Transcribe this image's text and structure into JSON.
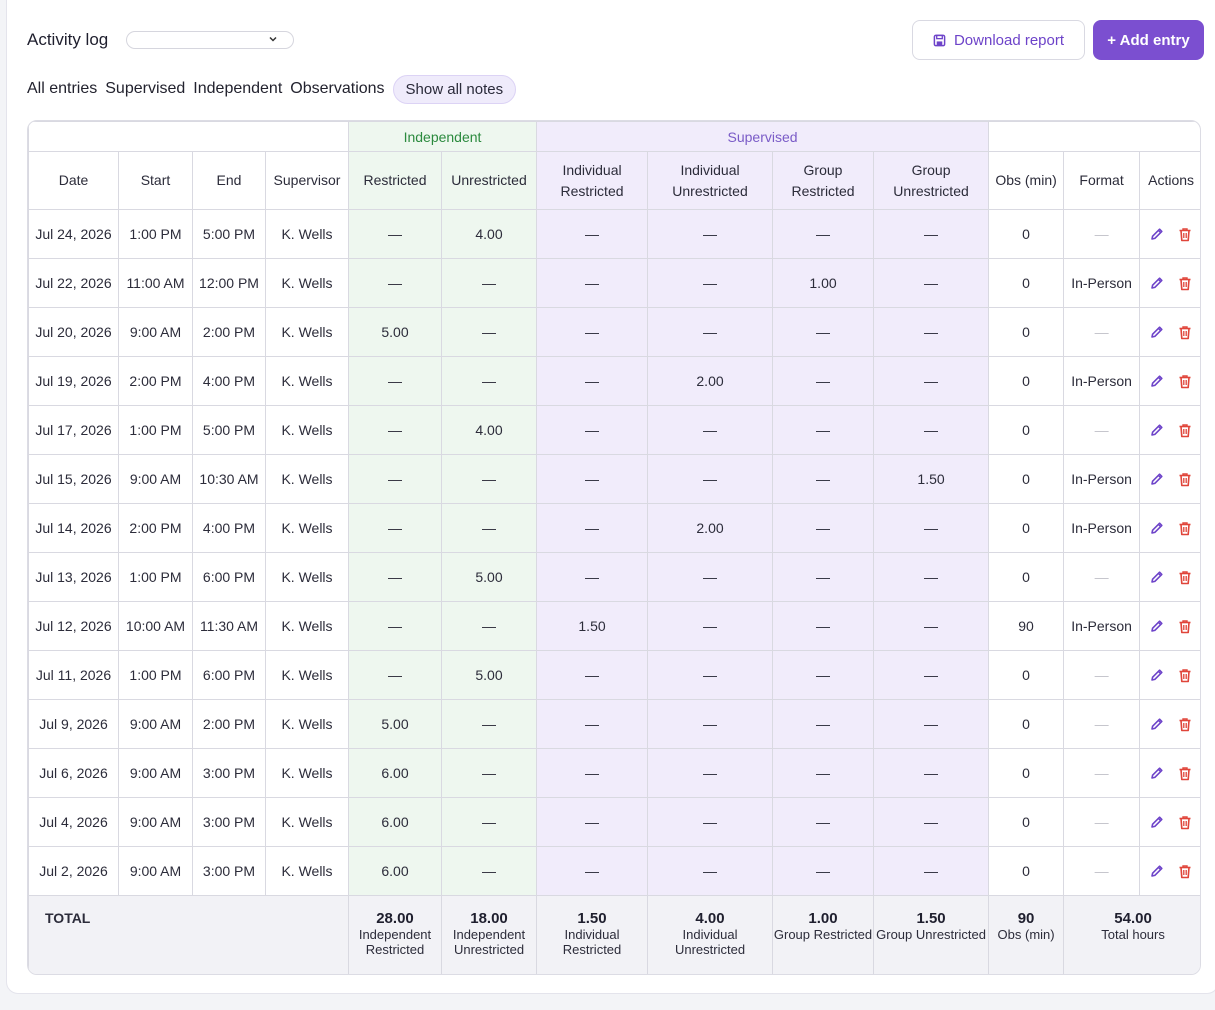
{
  "header": {
    "title": "Activity log",
    "dropdown_value": "",
    "download_label": "Download report",
    "add_label": "+ Add entry"
  },
  "filters": [
    "All entries",
    "Supervised",
    "Independent",
    "Observations"
  ],
  "show_notes_label": "Show all notes",
  "table": {
    "groups": {
      "independent": "Independent",
      "supervised": "Supervised"
    },
    "columns": [
      "Date",
      "Start",
      "End",
      "Supervisor",
      "Restricted",
      "Unrestricted",
      "Individual Restricted",
      "Individual Unrestricted",
      "Group Restricted",
      "Group Unrestricted",
      "Obs (min)",
      "Format",
      "Actions"
    ],
    "rows": [
      [
        "Jul 24, 2026",
        "1:00 PM",
        "5:00 PM",
        "K. Wells",
        "—",
        "4.00",
        "—",
        "—",
        "—",
        "—",
        "0",
        "—"
      ],
      [
        "Jul 22, 2026",
        "11:00 AM",
        "12:00 PM",
        "K. Wells",
        "—",
        "—",
        "—",
        "—",
        "1.00",
        "—",
        "0",
        "In-Person"
      ],
      [
        "Jul 20, 2026",
        "9:00 AM",
        "2:00 PM",
        "K. Wells",
        "5.00",
        "—",
        "—",
        "—",
        "—",
        "—",
        "0",
        "—"
      ],
      [
        "Jul 19, 2026",
        "2:00 PM",
        "4:00 PM",
        "K. Wells",
        "—",
        "—",
        "—",
        "2.00",
        "—",
        "—",
        "0",
        "In-Person"
      ],
      [
        "Jul 17, 2026",
        "1:00 PM",
        "5:00 PM",
        "K. Wells",
        "—",
        "4.00",
        "—",
        "—",
        "—",
        "—",
        "0",
        "—"
      ],
      [
        "Jul 15, 2026",
        "9:00 AM",
        "10:30 AM",
        "K. Wells",
        "—",
        "—",
        "—",
        "—",
        "—",
        "1.50",
        "0",
        "In-Person"
      ],
      [
        "Jul 14, 2026",
        "2:00 PM",
        "4:00 PM",
        "K. Wells",
        "—",
        "—",
        "—",
        "2.00",
        "—",
        "—",
        "0",
        "In-Person"
      ],
      [
        "Jul 13, 2026",
        "1:00 PM",
        "6:00 PM",
        "K. Wells",
        "—",
        "5.00",
        "—",
        "—",
        "—",
        "—",
        "0",
        "—"
      ],
      [
        "Jul 12, 2026",
        "10:00 AM",
        "11:30 AM",
        "K. Wells",
        "—",
        "—",
        "1.50",
        "—",
        "—",
        "—",
        "90",
        "In-Person"
      ],
      [
        "Jul 11, 2026",
        "1:00 PM",
        "6:00 PM",
        "K. Wells",
        "—",
        "5.00",
        "—",
        "—",
        "—",
        "—",
        "0",
        "—"
      ],
      [
        "Jul 9, 2026",
        "9:00 AM",
        "2:00 PM",
        "K. Wells",
        "5.00",
        "—",
        "—",
        "—",
        "—",
        "—",
        "0",
        "—"
      ],
      [
        "Jul 6, 2026",
        "9:00 AM",
        "3:00 PM",
        "K. Wells",
        "6.00",
        "—",
        "—",
        "—",
        "—",
        "—",
        "0",
        "—"
      ],
      [
        "Jul 4, 2026",
        "9:00 AM",
        "3:00 PM",
        "K. Wells",
        "6.00",
        "—",
        "—",
        "—",
        "—",
        "—",
        "0",
        "—"
      ],
      [
        "Jul 2, 2026",
        "9:00 AM",
        "3:00 PM",
        "K. Wells",
        "6.00",
        "—",
        "—",
        "—",
        "—",
        "—",
        "0",
        "—"
      ]
    ],
    "totals": {
      "label": "TOTAL",
      "items": [
        {
          "value": "28.00",
          "label": "Independent Restricted"
        },
        {
          "value": "18.00",
          "label": "Independent Unrestricted"
        },
        {
          "value": "1.50",
          "label": "Individual Restricted"
        },
        {
          "value": "4.00",
          "label": "Individual Unrestricted"
        },
        {
          "value": "1.00",
          "label": "Group Restricted"
        },
        {
          "value": "1.50",
          "label": "Group Unrestricted"
        },
        {
          "value": "90",
          "label": "Obs (min)"
        }
      ],
      "total_hours": {
        "value": "54.00",
        "label": "Total hours"
      }
    }
  },
  "icons": {
    "edit": "pencil-icon",
    "delete": "trash-icon",
    "download": "save-icon",
    "dropdown": "chevron-down-icon"
  },
  "colors": {
    "accent": "#7b4fd0",
    "independent_bg": "#eef7ef",
    "supervised_bg": "#f1ecfb",
    "delete": "#e0453a",
    "edit": "#6d43c9"
  }
}
